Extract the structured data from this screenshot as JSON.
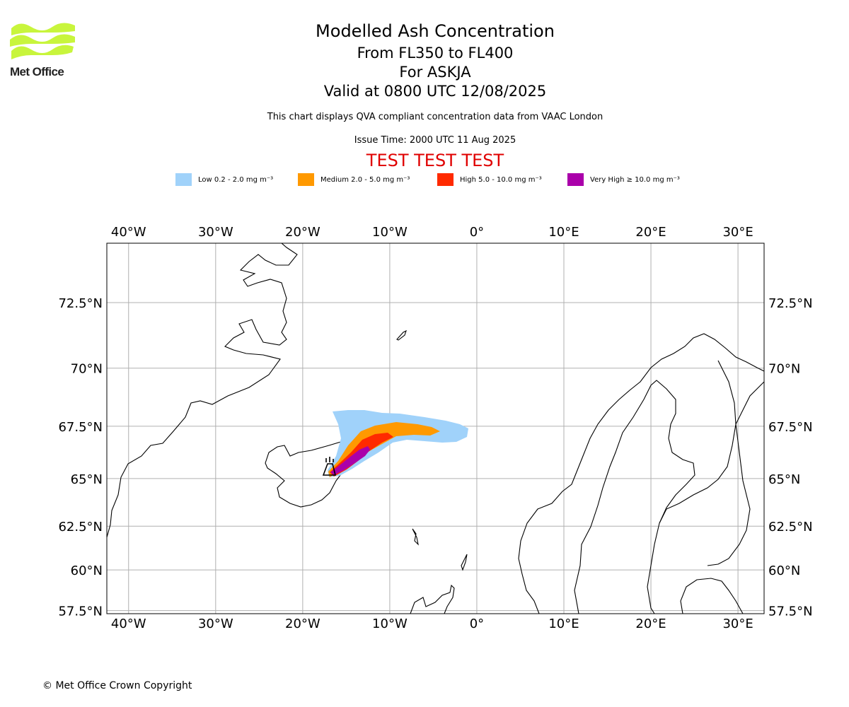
{
  "header": {
    "logo_text": "Met Office",
    "title": "Modelled Ash Concentration",
    "levels": "From FL350 to FL400",
    "volcano": "For ASKJA",
    "valid": "Valid at 0800 UTC 12/08/2025",
    "disclaimer": "This chart displays QVA compliant concentration data from VAAC London",
    "issue_time": "Issue Time: 2000 UTC 11 Aug 2025",
    "test_banner": "TEST TEST TEST"
  },
  "legend": [
    {
      "label": "Low 0.2 - 2.0 mg m⁻³",
      "color": "#a0d2fa"
    },
    {
      "label": "Medium 2.0 - 5.0 mg m⁻³",
      "color": "#ff9900"
    },
    {
      "label": "High 5.0 - 10.0 mg m⁻³",
      "color": "#ff2a00"
    },
    {
      "label": "Very High ≥ 10.0 mg m⁻³",
      "color": "#aa00aa"
    }
  ],
  "map": {
    "lon_range": [
      -42.5,
      33
    ],
    "lat_range": [
      57.3,
      74.5
    ],
    "lon_ticks": [
      {
        "v": -40,
        "label": "40°W"
      },
      {
        "v": -30,
        "label": "30°W"
      },
      {
        "v": -20,
        "label": "20°W"
      },
      {
        "v": -10,
        "label": "10°W"
      },
      {
        "v": 0,
        "label": "0°"
      },
      {
        "v": 10,
        "label": "10°E"
      },
      {
        "v": 20,
        "label": "20°E"
      },
      {
        "v": 30,
        "label": "30°E"
      }
    ],
    "lat_ticks": [
      {
        "v": 72.5,
        "label": "72.5°N"
      },
      {
        "v": 70,
        "label": "70°N"
      },
      {
        "v": 67.5,
        "label": "67.5°N"
      },
      {
        "v": 65,
        "label": "65°N"
      },
      {
        "v": 62.5,
        "label": "62.5°N"
      },
      {
        "v": 60,
        "label": "60°N"
      },
      {
        "v": 57.5,
        "label": "57.5°N"
      }
    ],
    "grid": true,
    "volcano_marker": "volcano-icon"
  },
  "footer": {
    "copyright": "© Met Office Crown Copyright"
  }
}
